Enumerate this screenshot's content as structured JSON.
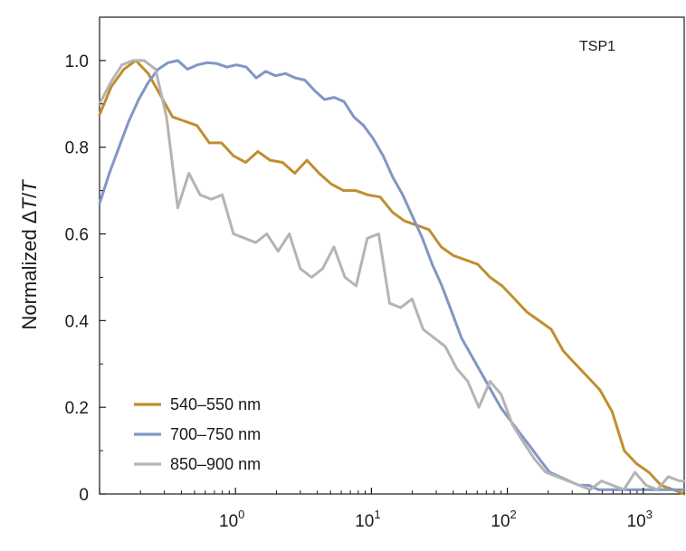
{
  "chart_data": {
    "type": "line",
    "title": "",
    "annotation": "TSP1",
    "xlabel": "",
    "ylabel_prefix": "Normalized ",
    "ylabel_delta": "Δ",
    "ylabel_T1": "T",
    "ylabel_slash": "/",
    "ylabel_T2": "T",
    "x_scale": "log",
    "xlim": [
      0.1,
      2000
    ],
    "ylim": [
      0,
      1.1
    ],
    "grid": false,
    "legend_position": "bottom-left",
    "x_ticks": [
      {
        "base": "10",
        "exp": "0",
        "value": 1
      },
      {
        "base": "10",
        "exp": "1",
        "value": 10
      },
      {
        "base": "10",
        "exp": "2",
        "value": 100
      },
      {
        "base": "10",
        "exp": "3",
        "value": 1000
      }
    ],
    "y_ticks": [
      {
        "label": "0",
        "value": 0
      },
      {
        "label": "0.2",
        "value": 0.2
      },
      {
        "label": "0.4",
        "value": 0.4
      },
      {
        "label": "0.6",
        "value": 0.6
      },
      {
        "label": "0.8",
        "value": 0.8
      },
      {
        "label": "1.0",
        "value": 1.0
      }
    ],
    "series": [
      {
        "name": "540–550 nm",
        "color": "#c08e2f",
        "x": [
          0.1,
          0.122,
          0.151,
          0.185,
          0.228,
          0.28,
          0.344,
          0.424,
          0.521,
          0.641,
          0.788,
          0.969,
          1.19,
          1.46,
          1.8,
          2.22,
          2.73,
          3.35,
          4.12,
          5.07,
          6.23,
          7.66,
          9.42,
          11.6,
          14.3,
          17.5,
          21.6,
          26.5,
          32.6,
          40.1,
          49.3,
          60.6,
          74.6,
          91.7,
          113,
          139,
          171,
          210,
          258,
          317,
          390,
          480,
          590,
          725,
          892,
          1100,
          1350,
          1660,
          2000
        ],
        "y": [
          0.875,
          0.94,
          0.98,
          1.0,
          0.97,
          0.92,
          0.87,
          0.86,
          0.85,
          0.81,
          0.81,
          0.78,
          0.765,
          0.79,
          0.77,
          0.765,
          0.74,
          0.77,
          0.74,
          0.715,
          0.7,
          0.7,
          0.69,
          0.685,
          0.65,
          0.63,
          0.62,
          0.61,
          0.57,
          0.55,
          0.54,
          0.53,
          0.5,
          0.48,
          0.45,
          0.42,
          0.4,
          0.38,
          0.33,
          0.3,
          0.27,
          0.24,
          0.19,
          0.1,
          0.07,
          0.05,
          0.02,
          0.01,
          0.0
        ]
      },
      {
        "name": "700–750 nm",
        "color": "#8196c4",
        "x": [
          0.1,
          0.118,
          0.139,
          0.164,
          0.194,
          0.229,
          0.27,
          0.319,
          0.376,
          0.444,
          0.524,
          0.619,
          0.73,
          0.862,
          1.02,
          1.2,
          1.42,
          1.67,
          1.97,
          2.33,
          2.75,
          3.24,
          3.83,
          4.52,
          5.33,
          6.29,
          7.43,
          8.77,
          10.3,
          12.2,
          14.4,
          17.0,
          20.1,
          23.7,
          28.0,
          33.0,
          39.0,
          46.0,
          54.3,
          64.1,
          75.7,
          89.3,
          105,
          124,
          147,
          173,
          205,
          241,
          285,
          337,
          397,
          469,
          554,
          654,
          772,
          911,
          1080,
          1270,
          1500,
          1770,
          2000
        ],
        "y": [
          0.67,
          0.74,
          0.8,
          0.86,
          0.91,
          0.95,
          0.98,
          0.995,
          1.0,
          0.98,
          0.99,
          0.995,
          0.993,
          0.985,
          0.99,
          0.985,
          0.96,
          0.975,
          0.965,
          0.97,
          0.96,
          0.955,
          0.93,
          0.91,
          0.915,
          0.905,
          0.87,
          0.85,
          0.82,
          0.78,
          0.73,
          0.69,
          0.64,
          0.59,
          0.53,
          0.48,
          0.42,
          0.36,
          0.32,
          0.28,
          0.24,
          0.2,
          0.17,
          0.14,
          0.11,
          0.08,
          0.05,
          0.04,
          0.03,
          0.02,
          0.02,
          0.01,
          0.01,
          0.01,
          0.01,
          0.01,
          0.01,
          0.01,
          0.01,
          0.01,
          0.01
        ]
      },
      {
        "name": "850–900 nm",
        "color": "#b4b4b4",
        "x": [
          0.1,
          0.121,
          0.146,
          0.176,
          0.213,
          0.258,
          0.311,
          0.376,
          0.454,
          0.549,
          0.663,
          0.8,
          0.967,
          1.17,
          1.41,
          1.7,
          2.06,
          2.49,
          3.0,
          3.63,
          4.38,
          5.29,
          6.39,
          7.72,
          9.33,
          11.3,
          13.6,
          16.4,
          19.9,
          24.0,
          29.0,
          35.0,
          42.3,
          51.1,
          61.7,
          74.5,
          90.0,
          109,
          131,
          159,
          192,
          232,
          280,
          338,
          408,
          493,
          595,
          719,
          869,
          1050,
          1270,
          1530,
          1850,
          2000
        ],
        "y": [
          0.9,
          0.95,
          0.99,
          1.0,
          1.0,
          0.98,
          0.87,
          0.66,
          0.74,
          0.69,
          0.68,
          0.69,
          0.6,
          0.59,
          0.58,
          0.6,
          0.56,
          0.6,
          0.52,
          0.5,
          0.52,
          0.57,
          0.5,
          0.48,
          0.59,
          0.6,
          0.44,
          0.43,
          0.45,
          0.38,
          0.36,
          0.34,
          0.29,
          0.26,
          0.2,
          0.26,
          0.23,
          0.16,
          0.12,
          0.08,
          0.05,
          0.04,
          0.03,
          0.02,
          0.01,
          0.03,
          0.02,
          0.01,
          0.05,
          0.02,
          0.01,
          0.04,
          0.03,
          0.03
        ]
      }
    ]
  }
}
